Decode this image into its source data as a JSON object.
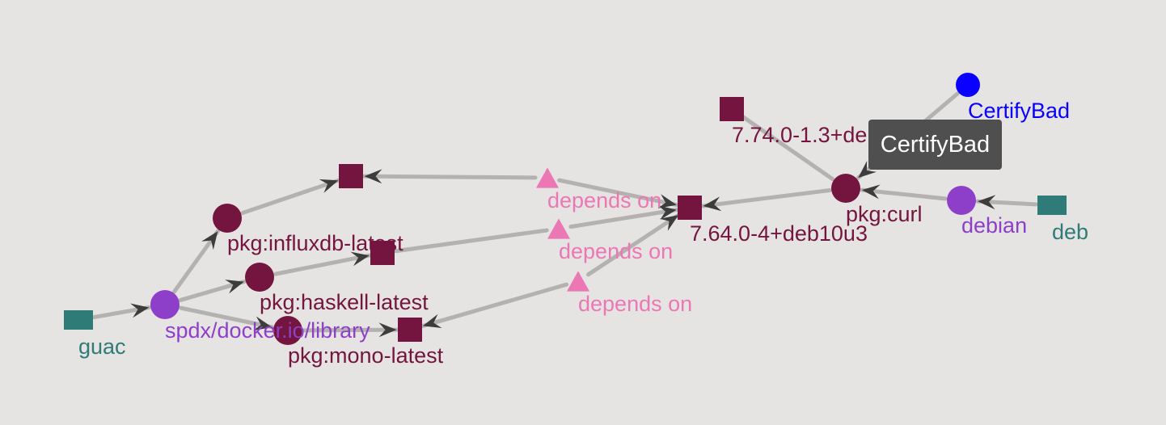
{
  "graph": {
    "colors": {
      "background": "#e6e4e3",
      "edge": "#b4b2b1",
      "arrow": "#3c3c3c",
      "package": "#73153f",
      "package_source": "#8e3fc9",
      "package_type": "#2f7b78",
      "dependency": "#ec77b5",
      "certify_bad": "#0a00ff",
      "tooltip_bg": "#4f4f4f",
      "tooltip_text": "#ffffff"
    },
    "nodes": [
      {
        "id": "guac",
        "label": "guac",
        "shape": "rect",
        "kind": "package_type",
        "interactable": true
      },
      {
        "id": "spdx",
        "label": "spdx/docker.io/library",
        "shape": "circle",
        "kind": "package_source",
        "interactable": true
      },
      {
        "id": "influx",
        "label": "pkg:influxdb-latest",
        "shape": "circle",
        "kind": "package",
        "interactable": true
      },
      {
        "id": "haskell",
        "label": "pkg:haskell-latest",
        "shape": "circle",
        "kind": "package",
        "interactable": true
      },
      {
        "id": "mono",
        "label": "pkg:mono-latest",
        "shape": "circle",
        "kind": "package",
        "interactable": true
      },
      {
        "id": "v_influx",
        "label": "",
        "shape": "rect",
        "kind": "package",
        "interactable": true
      },
      {
        "id": "v_haskell",
        "label": "",
        "shape": "rect",
        "kind": "package",
        "interactable": true
      },
      {
        "id": "v_mono",
        "label": "",
        "shape": "rect",
        "kind": "package",
        "interactable": true
      },
      {
        "id": "dep1",
        "label": "depends on",
        "shape": "triangle",
        "kind": "dependency",
        "interactable": true
      },
      {
        "id": "dep2",
        "label": "depends on",
        "shape": "triangle",
        "kind": "dependency",
        "interactable": true
      },
      {
        "id": "dep3",
        "label": "depends on",
        "shape": "triangle",
        "kind": "dependency",
        "interactable": true
      },
      {
        "id": "v_curl_deb10",
        "label": "7.64.0-4+deb10u3",
        "shape": "rect",
        "kind": "package",
        "interactable": true
      },
      {
        "id": "v_curl_deb11",
        "label": "7.74.0-1.3+deb11u2",
        "shape": "rect",
        "kind": "package",
        "interactable": true
      },
      {
        "id": "curl",
        "label": "pkg:curl",
        "shape": "circle",
        "kind": "package",
        "interactable": true
      },
      {
        "id": "debian",
        "label": "debian",
        "shape": "circle",
        "kind": "package_source",
        "interactable": true
      },
      {
        "id": "deb",
        "label": "deb",
        "shape": "rect",
        "kind": "package_type",
        "interactable": true
      },
      {
        "id": "certifybad",
        "label": "CertifyBad",
        "shape": "circle",
        "kind": "certify_bad",
        "interactable": true
      }
    ],
    "edges": [
      {
        "from": "guac",
        "to": "spdx",
        "arrow": true
      },
      {
        "from": "spdx",
        "to": "influx",
        "arrow": true
      },
      {
        "from": "spdx",
        "to": "haskell",
        "arrow": true
      },
      {
        "from": "spdx",
        "to": "mono",
        "arrow": true
      },
      {
        "from": "influx",
        "to": "v_influx",
        "arrow": true
      },
      {
        "from": "haskell",
        "to": "v_haskell",
        "arrow": true
      },
      {
        "from": "mono",
        "to": "v_mono",
        "arrow": true
      },
      {
        "from": "dep1",
        "to": "v_influx",
        "arrow": true
      },
      {
        "from": "dep2",
        "to": "v_haskell",
        "arrow": false
      },
      {
        "from": "dep3",
        "to": "v_mono",
        "arrow": true
      },
      {
        "from": "dep1",
        "to": "v_curl_deb10",
        "arrow": true
      },
      {
        "from": "dep2",
        "to": "v_curl_deb10",
        "arrow": true
      },
      {
        "from": "dep3",
        "to": "v_curl_deb10",
        "arrow": true
      },
      {
        "from": "curl",
        "to": "v_curl_deb10",
        "arrow": true
      },
      {
        "from": "curl",
        "to": "v_curl_deb11",
        "arrow": false
      },
      {
        "from": "debian",
        "to": "curl",
        "arrow": true
      },
      {
        "from": "deb",
        "to": "debian",
        "arrow": true
      },
      {
        "from": "certifybad",
        "to": "curl",
        "arrow": true
      }
    ]
  },
  "tooltip": {
    "text": "CertifyBad"
  }
}
